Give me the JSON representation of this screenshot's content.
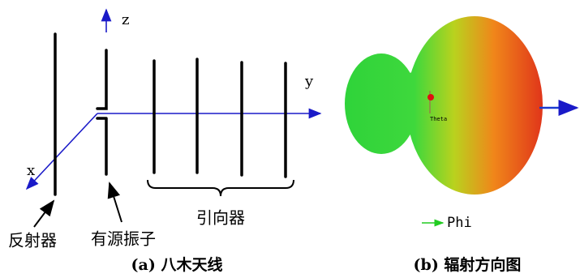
{
  "antenna": {
    "axes": {
      "z": "z",
      "y": "y",
      "x": "x"
    },
    "labels": {
      "reflector": "反射器",
      "driven": "有源振子",
      "directors": "引向器"
    },
    "caption": "(a) 八木天线"
  },
  "pattern": {
    "theta": "Theta",
    "phi": "Phi",
    "caption": "(b) 辐射方向图"
  }
}
